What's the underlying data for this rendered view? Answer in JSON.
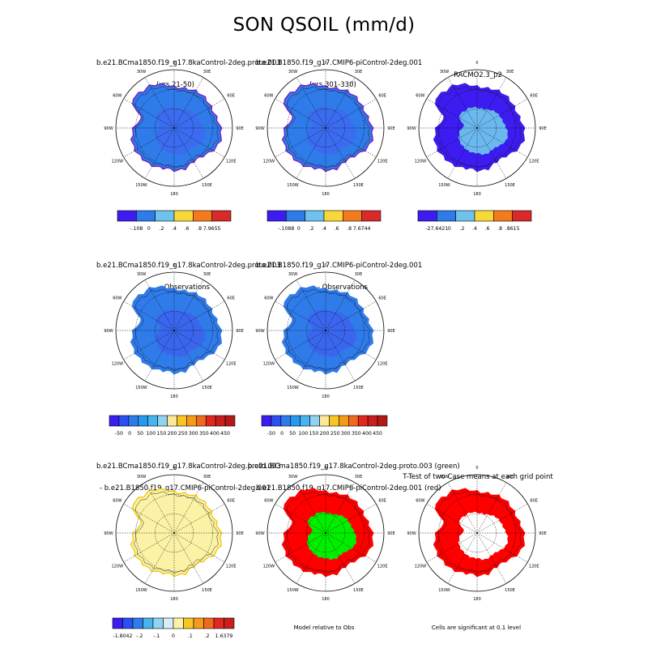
{
  "title": "SON QSOIL (mm/d)",
  "panels": [
    {
      "id": "p1",
      "line1": "b.e21.BCma1850.f19_g17.8kaControl-2deg.proto.003",
      "line2": "(yrs 21-50)",
      "fill": "#2f7bea",
      "inner": "#3b6cf0",
      "coast": "#7a1ec8"
    },
    {
      "id": "p2",
      "line1": "b.e21.B1850.f19_g17.CMIP6-piControl-2deg.001",
      "line2": "(yrs 301-330)",
      "fill": "#2f7bea",
      "inner": "#3b6cf0",
      "coast": "#7a1ec8"
    },
    {
      "id": "p3",
      "line1": "RACMO2.3_p2",
      "line2": "",
      "fill": "#3c1cf0",
      "inner": "#6ab8ee",
      "coast": "#3c1cf0"
    },
    {
      "id": "p4",
      "line1": "b.e21.BCma1850.f19_g17.8kaControl-2deg.proto.003",
      "line2": "- Observations",
      "fill": "#2f7bea",
      "inner": "#3a66ee",
      "coast": "#2f7bea"
    },
    {
      "id": "p5",
      "line1": "b.e21.B1850.f19_g17.CMIP6-piControl-2deg.001",
      "line2": "- Observations",
      "fill": "#2f7bea",
      "inner": "#3a66ee",
      "coast": "#2f7bea"
    },
    {
      "id": "p6",
      "line1": "b.e21.BCma1850.f19_g17.8kaControl-2deg.proto.003",
      "line2": "- b.e21.B1850.f19_g17.CMIP6-piControl-2deg.001",
      "fill": "#fbf2a6",
      "inner": "#fbf2a6",
      "coast": "#f2c90f"
    },
    {
      "id": "p7",
      "line1": "b.e21.BCma1850.f19_g17.8kaControl-2deg.proto.003 (green)",
      "line2": "b.e21.B1850.f19_g17.CMIP6-piControl-2deg.001 (red)",
      "fill": "#ff0000",
      "inner": "#00ee00",
      "coast": "#ff0000"
    },
    {
      "id": "p8",
      "line1": "T-Test of two Case means at each grid point",
      "line2": "",
      "fill": "#ff0000",
      "inner": "#ffffff",
      "coast": "#ff0000"
    }
  ],
  "lon_labels": [
    "0",
    "30E",
    "60E",
    "90E",
    "120E",
    "150E",
    "180",
    "150W",
    "120W",
    "90W",
    "60W",
    "30W"
  ],
  "colorbars": [
    {
      "id": "cb1",
      "colors": [
        "#3c1cf0",
        "#2f7bea",
        "#6ec3ee",
        "#f8d838",
        "#f57a1e",
        "#d82a2a"
      ],
      "labels": [
        "-.108",
        "0",
        ".2",
        ".4",
        ".6",
        ".8",
        "7.9655"
      ]
    },
    {
      "id": "cb2",
      "colors": [
        "#3c1cf0",
        "#2f7bea",
        "#6ec3ee",
        "#f8d838",
        "#f57a1e",
        "#d82a2a"
      ],
      "labels": [
        "-.1088",
        "0",
        ".2",
        ".4",
        ".6",
        ".8",
        "7.6744"
      ]
    },
    {
      "id": "cb3",
      "colors": [
        "#3c1cf0",
        "#2f7bea",
        "#6ec3ee",
        "#f8d838",
        "#f57a1e",
        "#d82a2a"
      ],
      "labels": [
        "-27.6421",
        "0",
        ".2",
        ".4",
        ".6",
        ".8",
        ".8615"
      ]
    },
    {
      "id": "cb4",
      "colors": [
        "#3c1cf0",
        "#2b4ff0",
        "#2f7bea",
        "#2598ef",
        "#47b4ef",
        "#8fd2f2",
        "#fbe99a",
        "#f7c624",
        "#f59a1b",
        "#f06a1e",
        "#e0281f",
        "#c81e1e",
        "#b51818"
      ],
      "labels": [
        "-50",
        "0",
        "50",
        "100",
        "150",
        "200",
        "250",
        "300",
        "350",
        "400",
        "450"
      ]
    },
    {
      "id": "cb5",
      "colors": [
        "#3c1cf0",
        "#2b4ff0",
        "#2f7bea",
        "#2598ef",
        "#47b4ef",
        "#8fd2f2",
        "#fbe99a",
        "#f7c624",
        "#f59a1b",
        "#f06a1e",
        "#e0281f",
        "#c81e1e",
        "#b51818"
      ],
      "labels": [
        "-50",
        "0",
        "50",
        "100",
        "150",
        "200",
        "250",
        "300",
        "350",
        "400",
        "450"
      ]
    },
    {
      "id": "cb6",
      "colors": [
        "#3c1cf0",
        "#2b4ff0",
        "#2f7bea",
        "#47b4ef",
        "#8fd2f2",
        "#d5eef8",
        "#fbf2a6",
        "#f7c624",
        "#f59a1b",
        "#f06a1e",
        "#e0281f",
        "#c81e1e"
      ],
      "labels": [
        "-1.8042",
        "-.2",
        "-.1",
        "0",
        ".1",
        ".2",
        "1.6379"
      ]
    }
  ],
  "notes": {
    "model_relative": "Model relative to Obs",
    "significance": "Cells are significant at 0.1 level"
  }
}
